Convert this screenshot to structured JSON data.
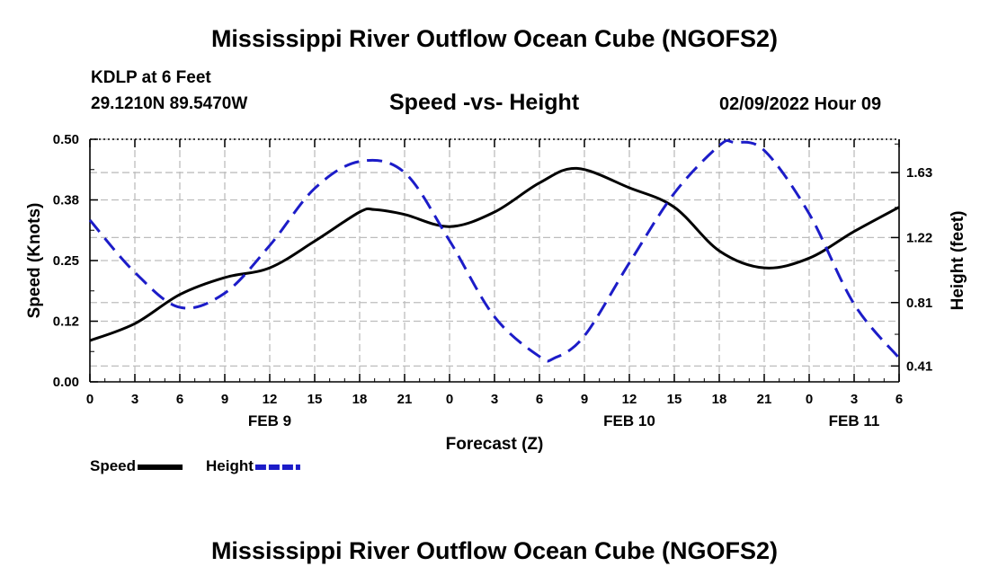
{
  "title": "Mississippi River Outflow Ocean Cube (NGOFS2)",
  "station": "KDLP at 6 Feet",
  "coords": "29.1210N  89.5470W",
  "subtitle": "Speed -vs- Height",
  "datetime": "02/09/2022 Hour 09",
  "footer_title": "Mississippi River Outflow Ocean Cube (NGOFS2)",
  "chart_data": {
    "type": "line",
    "title": "Speed -vs- Height",
    "xlabel": "Forecast (Z)",
    "ylabel": "Speed (Knots)",
    "y2label": "Height (feet)",
    "xlim": [
      0,
      54
    ],
    "ylim": [
      0,
      0.5
    ],
    "y2lim": [
      0.31,
      1.84
    ],
    "x_ticks": [
      0,
      3,
      6,
      9,
      12,
      15,
      18,
      21,
      24,
      27,
      30,
      33,
      36,
      39,
      42,
      45,
      48,
      51,
      54
    ],
    "x_tick_labels": [
      "0",
      "3",
      "6",
      "9",
      "12",
      "15",
      "18",
      "21",
      "0",
      "3",
      "6",
      "9",
      "12",
      "15",
      "18",
      "21",
      "0",
      "3",
      "6"
    ],
    "y_ticks": [
      0,
      0.125,
      0.25,
      0.375,
      0.5
    ],
    "y_tick_labels": [
      "0.00",
      "0.12",
      "0.25",
      "0.38",
      "0.50"
    ],
    "y2_ticks": [
      0.41,
      0.81,
      1.22,
      1.63
    ],
    "y2_tick_labels": [
      "0.41",
      "0.81",
      "1.22",
      "1.63"
    ],
    "date_labels": [
      {
        "x": 12,
        "label": "FEB 9"
      },
      {
        "x": 36,
        "label": "FEB 10"
      },
      {
        "x": 51,
        "label": "FEB 11"
      }
    ],
    "series": [
      {
        "name": "Speed",
        "axis": "left",
        "color": "#000000",
        "style": "solid",
        "x": [
          0,
          3,
          6,
          9,
          12,
          15,
          18,
          19,
          21,
          24,
          27,
          30,
          32.5,
          36,
          39,
          42,
          45,
          48,
          51,
          54
        ],
        "y": [
          0.085,
          0.12,
          0.18,
          0.215,
          0.235,
          0.29,
          0.35,
          0.355,
          0.345,
          0.32,
          0.35,
          0.41,
          0.44,
          0.4,
          0.36,
          0.27,
          0.235,
          0.255,
          0.31,
          0.36
        ]
      },
      {
        "name": "Height",
        "axis": "right",
        "color": "#1c1cc8",
        "style": "dashed",
        "x": [
          0,
          3,
          6,
          9,
          12,
          15,
          18,
          21,
          24,
          27,
          30,
          31,
          33,
          36,
          39,
          42,
          43,
          45,
          48,
          51,
          54
        ],
        "y": [
          1.33,
          1.0,
          0.78,
          0.87,
          1.17,
          1.53,
          1.7,
          1.63,
          1.2,
          0.72,
          0.47,
          0.46,
          0.6,
          1.06,
          1.5,
          1.8,
          1.82,
          1.77,
          1.37,
          0.8,
          0.46
        ]
      }
    ],
    "legend": [
      {
        "label": "Speed",
        "color": "#000000",
        "style": "solid"
      },
      {
        "label": "Height",
        "color": "#1c1cc8",
        "style": "dashed"
      }
    ],
    "legend_position": "bottom-left",
    "grid": true
  }
}
